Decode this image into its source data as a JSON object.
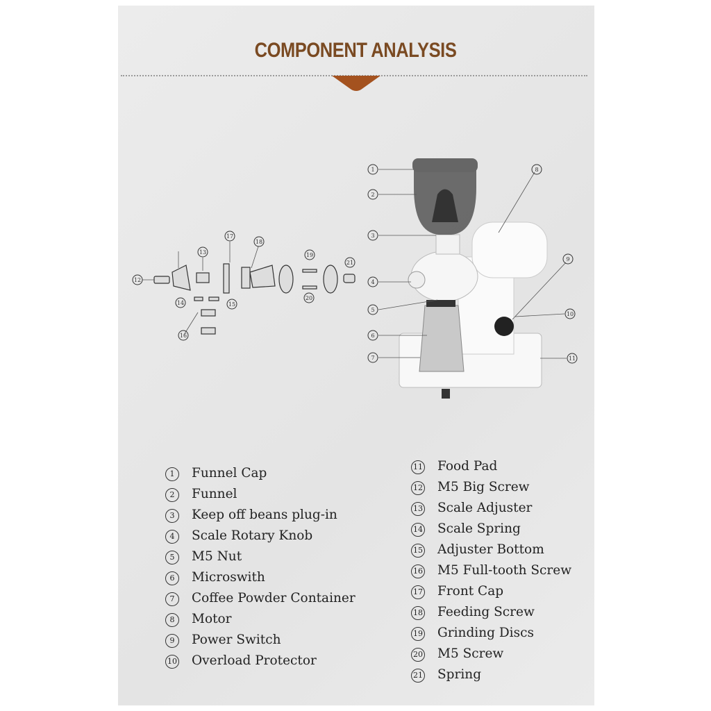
{
  "header": {
    "title": "COMPONENT ANALYSIS"
  },
  "callouts": [
    "1",
    "2",
    "3",
    "4",
    "5",
    "6",
    "7",
    "8",
    "9",
    "10",
    "11",
    "12",
    "13",
    "14",
    "15",
    "16",
    "17",
    "18",
    "19",
    "20",
    "21"
  ],
  "parts_left": [
    {
      "num": "1",
      "label": "Funnel Cap"
    },
    {
      "num": "2",
      "label": "Funnel"
    },
    {
      "num": "3",
      "label": "Keep off beans plug-in"
    },
    {
      "num": "4",
      "label": "Scale Rotary Knob"
    },
    {
      "num": "5",
      "label": "M5 Nut"
    },
    {
      "num": "6",
      "label": "Microswith"
    },
    {
      "num": "7",
      "label": "Coffee Powder Container"
    },
    {
      "num": "8",
      "label": "Motor"
    },
    {
      "num": "9",
      "label": "Power Switch"
    },
    {
      "num": "10",
      "label": "Overload  Protector"
    }
  ],
  "parts_right": [
    {
      "num": "11",
      "label": "Food Pad"
    },
    {
      "num": "12",
      "label": "M5 Big Screw"
    },
    {
      "num": "13",
      "label": "Scale Adjuster"
    },
    {
      "num": "14",
      "label": "Scale Spring"
    },
    {
      "num": "15",
      "label": "Adjuster Bottom"
    },
    {
      "num": "16",
      "label": "M5 Full-tooth Screw"
    },
    {
      "num": "17",
      "label": "Front  Cap"
    },
    {
      "num": "18",
      "label": "Feeding  Screw"
    },
    {
      "num": "19",
      "label": "Grinding Discs"
    },
    {
      "num": "20",
      "label": "M5 Screw"
    },
    {
      "num": "21",
      "label": "Spring"
    }
  ],
  "colors": {
    "accent": "#7a4a22",
    "notch": "#a4521f",
    "paper": "#e9e9e9"
  }
}
